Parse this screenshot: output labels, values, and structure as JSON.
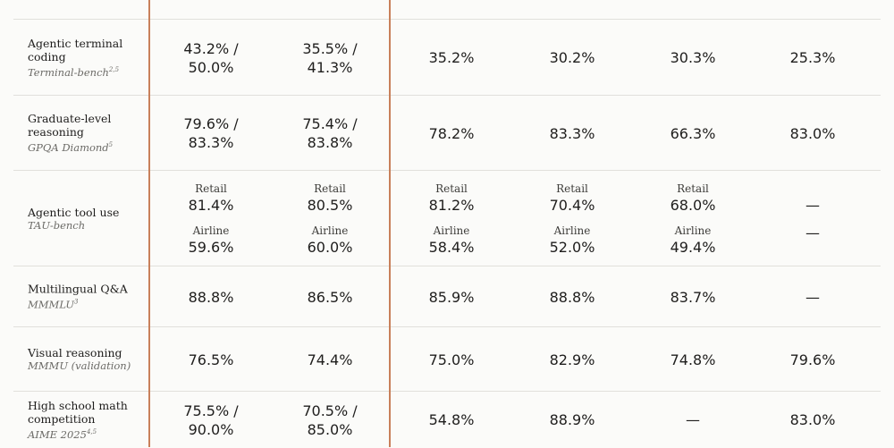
{
  "chart_data": {
    "type": "table",
    "rows": [
      {
        "label": "Agentic terminal coding",
        "label_lines": [
          "Agentic terminal",
          "coding"
        ],
        "benchmark": "Terminal-bench",
        "note": "2,5",
        "cells": [
          {
            "lines": [
              "43.2% /",
              "50.0%"
            ]
          },
          {
            "lines": [
              "35.5% /",
              "41.3%"
            ]
          },
          {
            "lines": [
              "35.2%"
            ]
          },
          {
            "lines": [
              "30.2%"
            ]
          },
          {
            "lines": [
              "30.3%"
            ]
          },
          {
            "lines": [
              "25.3%"
            ]
          }
        ]
      },
      {
        "label": "Graduate-level reasoning",
        "label_lines": [
          "Graduate-level",
          "reasoning"
        ],
        "benchmark": "GPQA Diamond",
        "note": "5",
        "cells": [
          {
            "lines": [
              "79.6% /",
              "83.3%"
            ]
          },
          {
            "lines": [
              "75.4% /",
              "83.8%"
            ]
          },
          {
            "lines": [
              "78.2%"
            ]
          },
          {
            "lines": [
              "83.3%"
            ]
          },
          {
            "lines": [
              "66.3%"
            ]
          },
          {
            "lines": [
              "83.0%"
            ]
          }
        ]
      },
      {
        "label": "Agentic tool use",
        "label_lines": [
          "Agentic tool use"
        ],
        "benchmark": "TAU-bench",
        "note": "",
        "cells": [
          {
            "groups": [
              {
                "name": "Retail",
                "value": "81.4%"
              },
              {
                "name": "Airline",
                "value": "59.6%"
              }
            ]
          },
          {
            "groups": [
              {
                "name": "Retail",
                "value": "80.5%"
              },
              {
                "name": "Airline",
                "value": "60.0%"
              }
            ]
          },
          {
            "groups": [
              {
                "name": "Retail",
                "value": "81.2%"
              },
              {
                "name": "Airline",
                "value": "58.4%"
              }
            ]
          },
          {
            "groups": [
              {
                "name": "Retail",
                "value": "70.4%"
              },
              {
                "name": "Airline",
                "value": "52.0%"
              }
            ]
          },
          {
            "groups": [
              {
                "name": "Retail",
                "value": "68.0%"
              },
              {
                "name": "Airline",
                "value": "49.4%"
              }
            ]
          },
          {
            "groups": [
              {
                "name": "",
                "value": "—"
              },
              {
                "name": "",
                "value": "—"
              }
            ]
          }
        ]
      },
      {
        "label": "Multilingual Q&A",
        "label_lines": [
          "Multilingual Q&A"
        ],
        "benchmark": "MMMLU",
        "note": "3",
        "cells": [
          {
            "lines": [
              "88.8%"
            ]
          },
          {
            "lines": [
              "86.5%"
            ]
          },
          {
            "lines": [
              "85.9%"
            ]
          },
          {
            "lines": [
              "88.8%"
            ]
          },
          {
            "lines": [
              "83.7%"
            ]
          },
          {
            "lines": [
              "—"
            ]
          }
        ]
      },
      {
        "label": "Visual reasoning",
        "label_lines": [
          "Visual reasoning"
        ],
        "benchmark": "MMMU (validation)",
        "note": "",
        "cells": [
          {
            "lines": [
              "76.5%"
            ]
          },
          {
            "lines": [
              "74.4%"
            ]
          },
          {
            "lines": [
              "75.0%"
            ]
          },
          {
            "lines": [
              "82.9%"
            ]
          },
          {
            "lines": [
              "74.8%"
            ]
          },
          {
            "lines": [
              "79.6%"
            ]
          }
        ]
      },
      {
        "label": "High school math competition",
        "label_lines": [
          "High school math",
          "competition"
        ],
        "benchmark": "AIME 2025",
        "note": "4,5",
        "cells": [
          {
            "lines": [
              "75.5% /",
              "90.0%"
            ]
          },
          {
            "lines": [
              "70.5% /",
              "85.0%"
            ]
          },
          {
            "lines": [
              "54.8%"
            ]
          },
          {
            "lines": [
              "88.9%"
            ]
          },
          {
            "lines": [
              "—"
            ]
          },
          {
            "lines": [
              "83.0%"
            ]
          }
        ]
      }
    ]
  }
}
